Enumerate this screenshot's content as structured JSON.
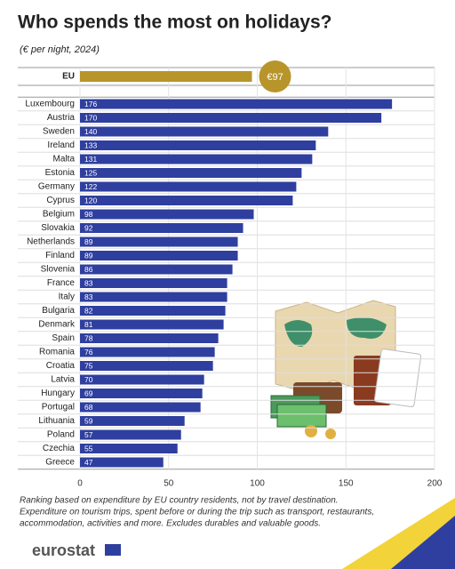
{
  "chart_data": {
    "type": "bar",
    "orientation": "horizontal",
    "title": "Who spends the most on holidays?",
    "subtitle": "(€ per night, 2024)",
    "highlight": {
      "category": "EU",
      "values": [
        97
      ],
      "value_labels": [
        "€97"
      ],
      "color": "#b8952a"
    },
    "categories": [
      "Luxembourg",
      "Austria",
      "Sweden",
      "Ireland",
      "Malta",
      "Estonia",
      "Germany",
      "Cyprus",
      "Belgium",
      "Slovakia",
      "Netherlands",
      "Finland",
      "Slovenia",
      "France",
      "Italy",
      "Bulgaria",
      "Denmark",
      "Spain",
      "Romania",
      "Croatia",
      "Latvia",
      "Hungary",
      "Portugal",
      "Lithuania",
      "Poland",
      "Czechia",
      "Greece"
    ],
    "values": [
      176,
      170,
      140,
      133,
      131,
      125,
      122,
      120,
      98,
      92,
      89,
      89,
      86,
      83,
      83,
      82,
      81,
      78,
      76,
      75,
      70,
      69,
      68,
      59,
      57,
      55,
      47
    ],
    "color": "#2f3f9f",
    "xlim": [
      0,
      200
    ],
    "xticks": [
      0,
      50,
      100,
      150,
      200
    ],
    "grid": true,
    "notes": [
      "Ranking based on expenditure by EU country residents, not by travel destination.",
      "Expenditure on tourism trips, spent before or during the trip such as transport, restaurants,",
      "accommodation, activities and more. Excludes durables and valuable goods."
    ],
    "source": "eurostat"
  }
}
